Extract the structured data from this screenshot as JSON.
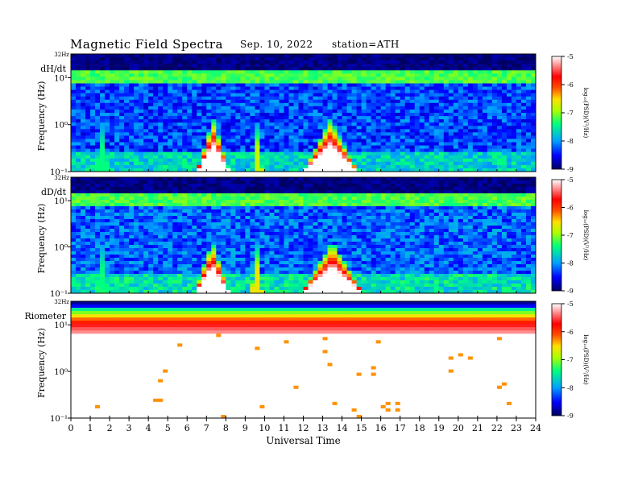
{
  "header": {
    "title": "Magnetic  Field  Spectra",
    "date": "Sep. 10, 2022",
    "station": "station=ATH"
  },
  "colors": {
    "scale": [
      "#000060",
      "#0000ff",
      "#00b4ff",
      "#00ff80",
      "#aaff00",
      "#ffe000",
      "#ff5000",
      "#ff0000",
      "#ffffff"
    ]
  },
  "chart_data": [
    {
      "type": "heatmap",
      "panel_label": "dH/dt",
      "ylabel": "Frequency  (Hz)",
      "nyquist_label": "32Hz",
      "ytick_labels": [
        "10¹",
        "10⁰",
        "10⁻¹"
      ],
      "y_scale": "log",
      "ylim": [
        0.1,
        32
      ],
      "x": [
        0,
        24
      ],
      "colorbar": {
        "label": "log₁₀(PSD)(V²/Hz)",
        "ticks": [
          "-5",
          "-6",
          "-7",
          "-8",
          "-9"
        ],
        "range": [
          -9,
          -5
        ]
      },
      "background_level": -8.3,
      "low_freq_events": [
        {
          "start": 1.2,
          "end": 2.0,
          "peak": -7.4
        },
        {
          "start": 6.5,
          "end": 8.2,
          "peak": -5.0
        },
        {
          "start": 9.4,
          "end": 9.9,
          "peak": -6.8
        },
        {
          "start": 12.0,
          "end": 14.8,
          "peak": -5.0
        }
      ]
    },
    {
      "type": "heatmap",
      "panel_label": "dD/dt",
      "ylabel": "Frequency  (Hz)",
      "nyquist_label": "32Hz",
      "ytick_labels": [
        "10¹",
        "10⁰",
        "10⁻¹"
      ],
      "y_scale": "log",
      "ylim": [
        0.1,
        32
      ],
      "x": [
        0,
        24
      ],
      "colorbar": {
        "label": "log₁₀(PSD)(V²/Hz)",
        "ticks": [
          "-5",
          "-6",
          "-7",
          "-8",
          "-9"
        ],
        "range": [
          -9,
          -5
        ]
      },
      "background_level": -8.2,
      "low_freq_events": [
        {
          "start": 1.2,
          "end": 2.0,
          "peak": -7.4
        },
        {
          "start": 6.4,
          "end": 8.2,
          "peak": -5.0
        },
        {
          "start": 9.3,
          "end": 9.9,
          "peak": -6.6
        },
        {
          "start": 11.9,
          "end": 15.1,
          "peak": -5.0
        }
      ]
    },
    {
      "type": "heatmap",
      "panel_label": "Riometer",
      "ylabel": "Frequency  (Hz)",
      "nyquist_label": "32Hz",
      "ytick_labels": [
        "10¹",
        "10⁰",
        "10⁻¹"
      ],
      "y_scale": "log",
      "ylim": [
        0.1,
        32
      ],
      "x": [
        0,
        24
      ],
      "colorbar": {
        "label": "log₁₀(PSD)(V²/Hz)",
        "ticks": [
          "-5",
          "-6",
          "-7",
          "-8",
          "-9"
        ],
        "range": [
          -9,
          -5
        ]
      },
      "description_levels": "saturated below ~5 Hz",
      "low_freq_events": []
    }
  ],
  "xaxis": {
    "label": "Universal  Time",
    "ticks": [
      "0",
      "1",
      "2",
      "3",
      "4",
      "5",
      "6",
      "7",
      "8",
      "9",
      "10",
      "11",
      "12",
      "13",
      "14",
      "15",
      "16",
      "17",
      "18",
      "19",
      "20",
      "21",
      "22",
      "23",
      "24"
    ]
  }
}
